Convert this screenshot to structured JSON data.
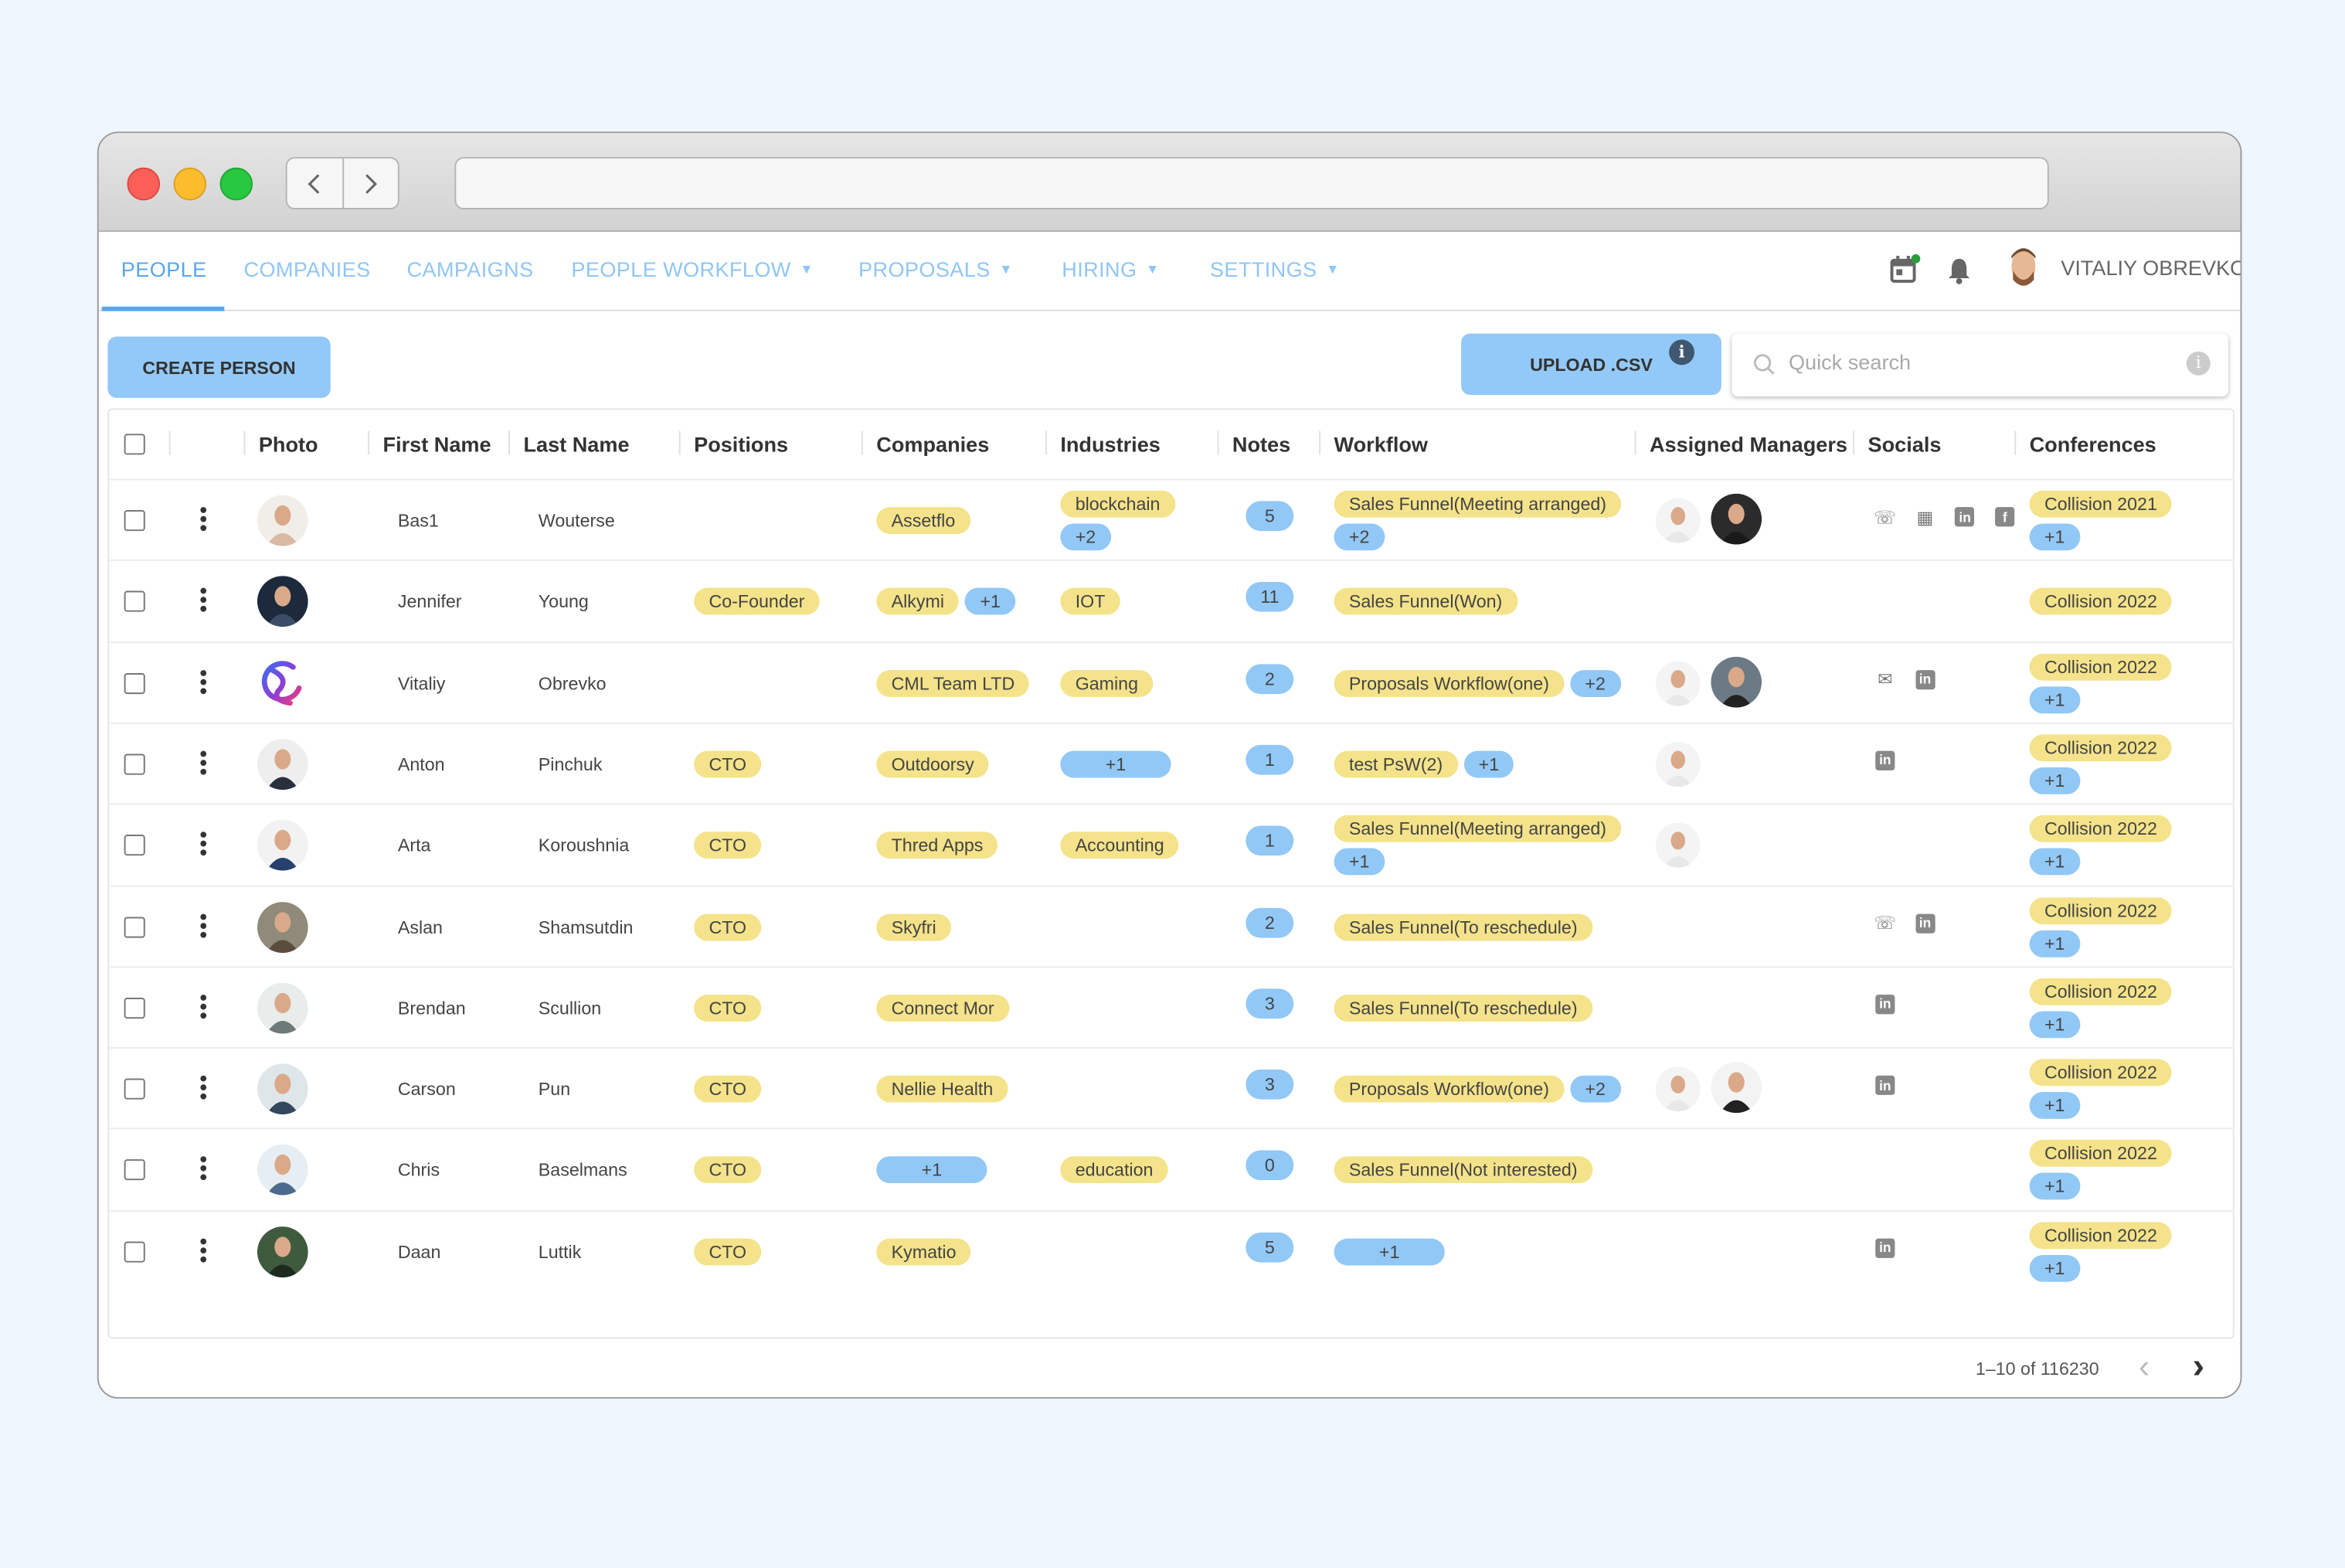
{
  "browser": {
    "back_icon": "chevron-left",
    "forward_icon": "chevron-right",
    "address": ""
  },
  "nav": {
    "tabs": [
      {
        "label": "PEOPLE",
        "active": true,
        "dropdown": false
      },
      {
        "label": "COMPANIES",
        "dropdown": false
      },
      {
        "label": "CAMPAIGNS",
        "dropdown": false
      },
      {
        "label": "PEOPLE WORKFLOW",
        "dropdown": true
      },
      {
        "label": "PROPOSALS",
        "dropdown": true
      },
      {
        "label": "HIRING",
        "dropdown": true
      },
      {
        "label": "SETTINGS",
        "dropdown": true
      }
    ],
    "caret": "▼",
    "user_name": "VITALIY OBREVKO",
    "icons": [
      "calendar-icon",
      "bell-icon"
    ]
  },
  "toolbar": {
    "create_label": "CREATE PERSON",
    "upload_label": "UPLOAD .CSV",
    "info_glyph": "i",
    "search_placeholder": "Quick search"
  },
  "colors": {
    "accent": "#5aa6ee",
    "chip_yellow": "#f4e38a",
    "chip_blue": "#92c8f6",
    "button": "#93c9f8"
  },
  "table": {
    "headers": [
      "Photo",
      "First Name",
      "Last Name",
      "Positions",
      "Companies",
      "Industries",
      "Notes",
      "Workflow",
      "Assigned Managers",
      "Socials",
      "Conferences"
    ],
    "rows": [
      {
        "first": "Bas1",
        "last": "Wouterse",
        "positions": [],
        "companies": [
          [
            "Assetflo"
          ]
        ],
        "industries": [
          [
            "blockchain"
          ],
          [
            "+2"
          ]
        ],
        "notes": "5",
        "workflow": [
          [
            "Sales Funnel(Meeting arranged)"
          ],
          [
            "+2"
          ]
        ],
        "managers": 2,
        "socials": [
          "phone",
          "calendar",
          "linkedin",
          "facebook"
        ],
        "conferences": [
          [
            "Collision 2021"
          ],
          [
            "+1"
          ]
        ]
      },
      {
        "first": "Jennifer",
        "last": "Young",
        "positions": [
          [
            "Co-Founder"
          ]
        ],
        "companies": [
          [
            "Alkymi",
            "+1"
          ]
        ],
        "industries": [
          [
            "IOT"
          ]
        ],
        "notes": "11",
        "workflow": [
          [
            "Sales Funnel(Won)"
          ]
        ],
        "managers": 0,
        "socials": [],
        "conferences": [
          [
            "Collision 2022"
          ]
        ]
      },
      {
        "first": "Vitaliy",
        "last": "Obrevko",
        "positions": [],
        "companies": [
          [
            "CML Team LTD"
          ]
        ],
        "industries": [
          [
            "Gaming"
          ]
        ],
        "notes": "2",
        "workflow": [
          [
            "Proposals Workflow(one)",
            "+2"
          ]
        ],
        "managers": 2,
        "socials": [
          "email",
          "linkedin"
        ],
        "conferences": [
          [
            "Collision 2022"
          ],
          [
            "+1"
          ]
        ]
      },
      {
        "first": "Anton",
        "last": "Pinchuk",
        "positions": [
          [
            "CTO"
          ]
        ],
        "companies": [
          [
            "Outdoorsy"
          ]
        ],
        "industries": [
          [
            "+1"
          ]
        ],
        "notes": "1",
        "workflow": [
          [
            "test PsW(2)",
            "+1"
          ]
        ],
        "managers": 1,
        "socials": [
          "linkedin"
        ],
        "conferences": [
          [
            "Collision 2022"
          ],
          [
            "+1"
          ]
        ]
      },
      {
        "first": "Arta",
        "last": "Koroushnia",
        "positions": [
          [
            "CTO"
          ]
        ],
        "companies": [
          [
            "Thred Apps"
          ]
        ],
        "industries": [
          [
            "Accounting"
          ]
        ],
        "notes": "1",
        "workflow": [
          [
            "Sales Funnel(Meeting arranged)"
          ],
          [
            "+1"
          ]
        ],
        "managers": 1,
        "socials": [],
        "conferences": [
          [
            "Collision 2022"
          ],
          [
            "+1"
          ]
        ]
      },
      {
        "first": "Aslan",
        "last": "Shamsutdin",
        "positions": [
          [
            "CTO"
          ]
        ],
        "companies": [
          [
            "Skyfri"
          ]
        ],
        "industries": [],
        "notes": "2",
        "workflow": [
          [
            "Sales Funnel(To reschedule)"
          ]
        ],
        "managers": 0,
        "socials": [
          "phone",
          "linkedin"
        ],
        "conferences": [
          [
            "Collision 2022"
          ],
          [
            "+1"
          ]
        ]
      },
      {
        "first": "Brendan",
        "last": "Scullion",
        "positions": [
          [
            "CTO"
          ]
        ],
        "companies": [
          [
            "Connect Mor"
          ]
        ],
        "industries": [],
        "notes": "3",
        "workflow": [
          [
            "Sales Funnel(To reschedule)"
          ]
        ],
        "managers": 0,
        "socials": [
          "linkedin"
        ],
        "conferences": [
          [
            "Collision 2022"
          ],
          [
            "+1"
          ]
        ]
      },
      {
        "first": "Carson",
        "last": "Pun",
        "positions": [
          [
            "CTO"
          ]
        ],
        "companies": [
          [
            "Nellie Health"
          ]
        ],
        "industries": [],
        "notes": "3",
        "workflow": [
          [
            "Proposals Workflow(one)",
            "+2"
          ]
        ],
        "managers": 2,
        "socials": [
          "linkedin"
        ],
        "conferences": [
          [
            "Collision 2022"
          ],
          [
            "+1"
          ]
        ]
      },
      {
        "first": "Chris",
        "last": "Baselmans",
        "positions": [
          [
            "CTO"
          ]
        ],
        "companies": [
          [
            "+1"
          ]
        ],
        "industries": [
          [
            "education"
          ]
        ],
        "notes": "0",
        "workflow": [
          [
            "Sales Funnel(Not interested)"
          ]
        ],
        "managers": 0,
        "socials": [],
        "conferences": [
          [
            "Collision 2022"
          ],
          [
            "+1"
          ]
        ]
      },
      {
        "first": "Daan",
        "last": "Luttik",
        "positions": [
          [
            "CTO"
          ]
        ],
        "companies": [
          [
            "Kymatio"
          ]
        ],
        "industries": [],
        "notes": "5",
        "workflow": [
          [
            "+1"
          ]
        ],
        "managers": 0,
        "socials": [
          "linkedin"
        ],
        "conferences": [
          [
            "Collision 2022"
          ],
          [
            "+1"
          ]
        ]
      }
    ]
  },
  "pagination": {
    "range_label": "1–10 of 116230",
    "prev_glyph": "‹",
    "next_glyph": "›"
  }
}
